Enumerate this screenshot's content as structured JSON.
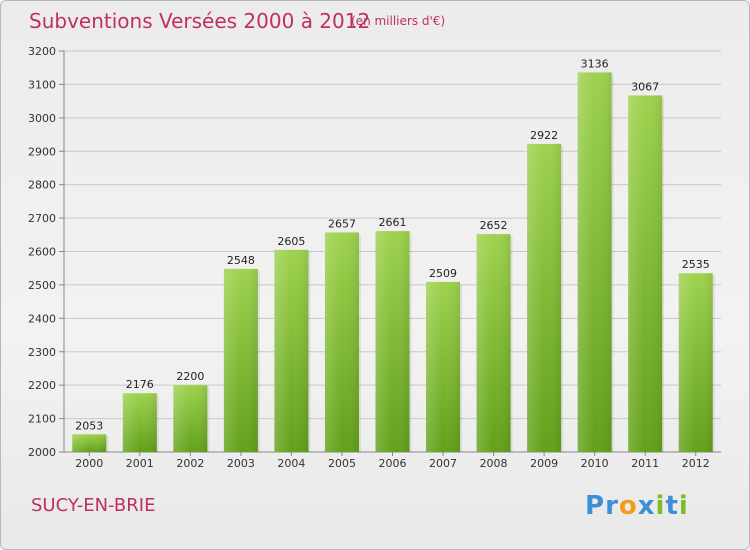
{
  "header": {
    "title": "Subventions Versées 2000 à 2012",
    "subtitle": "(en milliers d'€)"
  },
  "footer": {
    "commune": "SUCY-EN-BRIE",
    "logo_text": "Proxiti"
  },
  "colors": {
    "accent": "#c0305a",
    "bar_top": "#9ed24e",
    "bar_bottom": "#62a11a",
    "grid": "#c8c8c8",
    "logo_letters": [
      "#3d8fd6",
      "#3d8fd6",
      "#f39c1a",
      "#3d8fd6",
      "#7dbb2a",
      "#3d8fd6",
      "#7dbb2a"
    ]
  },
  "chart_data": {
    "type": "bar",
    "title": "Subventions Versées 2000 à 2012",
    "subtitle": "(en milliers d'€)",
    "xlabel": "",
    "ylabel": "",
    "categories": [
      "2000",
      "2001",
      "2002",
      "2003",
      "2004",
      "2005",
      "2006",
      "2007",
      "2008",
      "2009",
      "2010",
      "2011",
      "2012"
    ],
    "values": [
      2053,
      2176,
      2200,
      2548,
      2605,
      2657,
      2661,
      2509,
      2652,
      2922,
      3136,
      3067,
      2535
    ],
    "ylim": [
      2000,
      3200
    ],
    "yticks": [
      2000,
      2100,
      2200,
      2300,
      2400,
      2500,
      2600,
      2700,
      2800,
      2900,
      3000,
      3100,
      3200
    ],
    "grid": true,
    "data_labels": true
  }
}
